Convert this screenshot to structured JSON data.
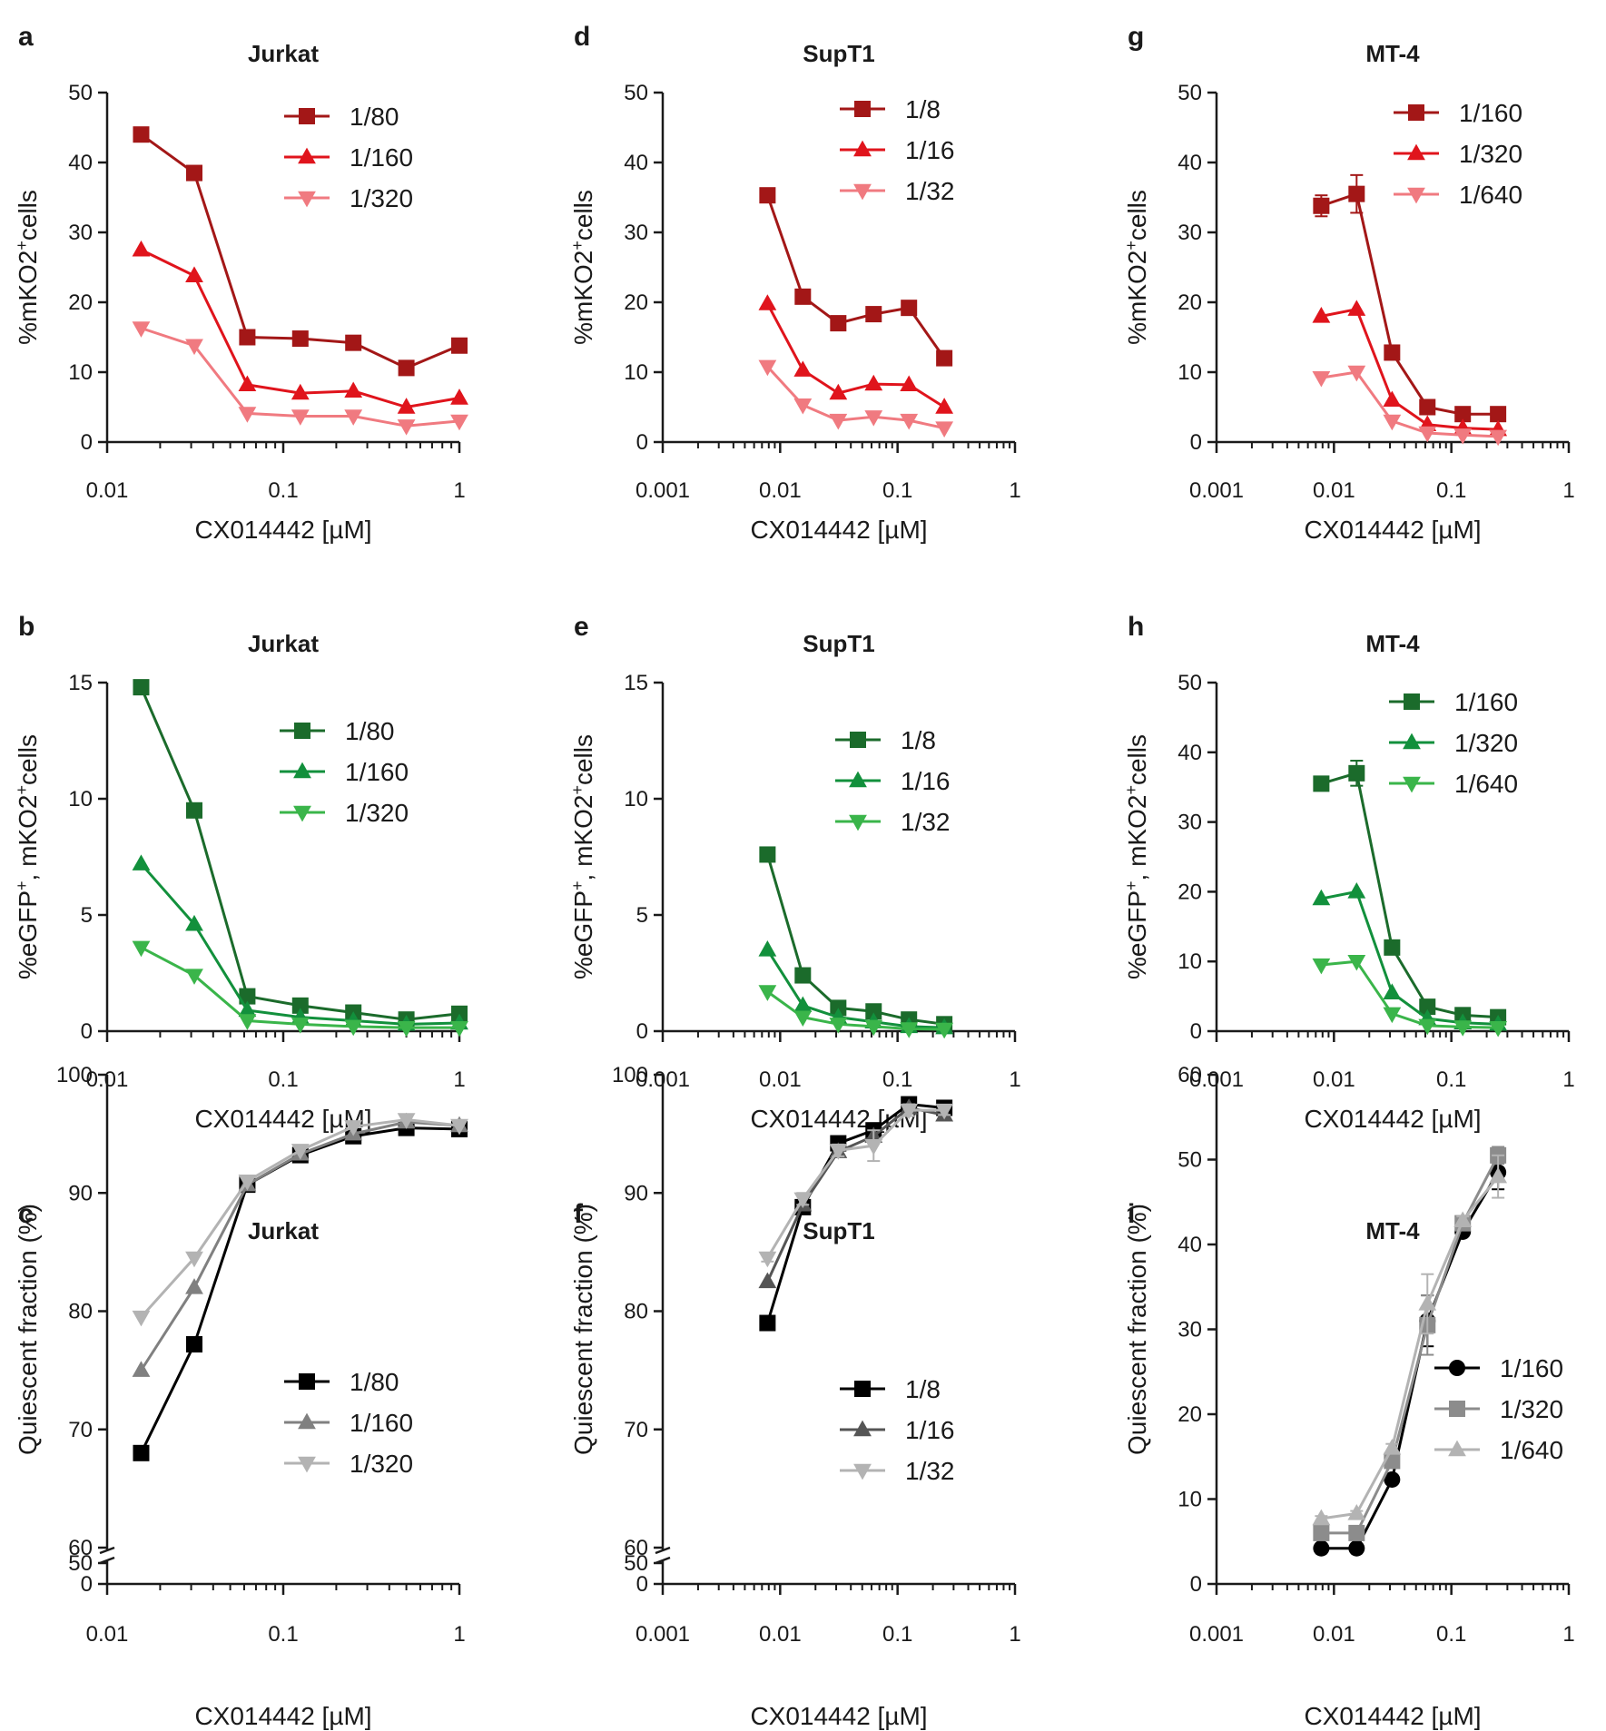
{
  "chart_data": [
    {
      "panel": "a",
      "title": "Jurkat",
      "type": "line",
      "xlabel": "CX014442 [µM]",
      "xscale": "log",
      "xlim": [
        0.01,
        1
      ],
      "xticks": [
        "0.01",
        "0.1",
        "1"
      ],
      "ylabel_parts": [
        "%mKO2",
        "+",
        "cells"
      ],
      "ylim": [
        0,
        50
      ],
      "yticks": [
        "0",
        "10",
        "20",
        "30",
        "40",
        "50"
      ],
      "x": [
        0.0156,
        0.03125,
        0.0625,
        0.125,
        0.25,
        0.5,
        1
      ],
      "series": [
        {
          "name": "1/80",
          "marker": "square",
          "color": "#a31717",
          "values": [
            44,
            38.5,
            15,
            14.8,
            14.2,
            10.6,
            13.8
          ]
        },
        {
          "name": "1/160",
          "marker": "triangle",
          "color": "#e0141c",
          "values": [
            27.5,
            23.8,
            8.2,
            7,
            7.3,
            5,
            6.3
          ]
        },
        {
          "name": "1/320",
          "marker": "triangle-down",
          "color": "#f07a80",
          "values": [
            16.3,
            13.8,
            4.1,
            3.7,
            3.7,
            2.3,
            3
          ]
        }
      ]
    },
    {
      "panel": "d",
      "title": "SupT1",
      "type": "line",
      "xlabel": "CX014442 [µM]",
      "xscale": "log",
      "xlim": [
        0.001,
        1
      ],
      "xticks": [
        "0.001",
        "0.01",
        "0.1",
        "1"
      ],
      "ylabel_parts": [
        "%mKO2",
        "+",
        "cells"
      ],
      "ylim": [
        0,
        50
      ],
      "yticks": [
        "0",
        "10",
        "20",
        "30",
        "40",
        "50"
      ],
      "x": [
        0.0078,
        0.0156,
        0.03125,
        0.0625,
        0.125,
        0.25
      ],
      "series": [
        {
          "name": "1/8",
          "marker": "square",
          "color": "#a31717",
          "values": [
            35.3,
            20.8,
            17,
            18.3,
            19.2,
            12
          ]
        },
        {
          "name": "1/16",
          "marker": "triangle",
          "color": "#e0141c",
          "values": [
            19.8,
            10.3,
            7,
            8.3,
            8.2,
            5
          ]
        },
        {
          "name": "1/32",
          "marker": "triangle-down",
          "color": "#f07a80",
          "values": [
            10.8,
            5.3,
            3.1,
            3.6,
            3.1,
            2
          ]
        }
      ]
    },
    {
      "panel": "g",
      "title": "MT-4",
      "type": "line",
      "xlabel": "CX014442 [µM]",
      "xscale": "log",
      "xlim": [
        0.001,
        1
      ],
      "xticks": [
        "0.001",
        "0.01",
        "0.1",
        "1"
      ],
      "ylabel_parts": [
        "%mKO2",
        "+",
        "cells"
      ],
      "ylim": [
        0,
        50
      ],
      "yticks": [
        "0",
        "10",
        "20",
        "30",
        "40",
        "50"
      ],
      "x": [
        0.0078,
        0.0156,
        0.03125,
        0.0625,
        0.125,
        0.25
      ],
      "series": [
        {
          "name": "1/160",
          "marker": "square",
          "color": "#a31717",
          "values": [
            33.8,
            35.5,
            12.8,
            5,
            4,
            4
          ],
          "errors": [
            1.5,
            2.7,
            1,
            0.5,
            0.3,
            0.3
          ]
        },
        {
          "name": "1/320",
          "marker": "triangle",
          "color": "#e0141c",
          "values": [
            18,
            19,
            6,
            2.5,
            2,
            1.8
          ]
        },
        {
          "name": "1/640",
          "marker": "triangle-down",
          "color": "#f07a80",
          "values": [
            9.2,
            10,
            3,
            1.3,
            1,
            0.8
          ]
        }
      ]
    },
    {
      "panel": "b",
      "title": "Jurkat",
      "type": "line",
      "xlabel": "CX014442 [µM]",
      "xscale": "log",
      "xlim": [
        0.01,
        1
      ],
      "xticks": [
        "0.01",
        "0.1",
        "1"
      ],
      "ylabel_parts": [
        "%eGFP",
        "+",
        ", mKO2",
        "+",
        "cells"
      ],
      "ylim": [
        0,
        15
      ],
      "yticks": [
        "0",
        "5",
        "10",
        "15"
      ],
      "x": [
        0.0156,
        0.03125,
        0.0625,
        0.125,
        0.25,
        0.5,
        1
      ],
      "series": [
        {
          "name": "1/80",
          "marker": "square",
          "color": "#1b6b2b",
          "values": [
            14.8,
            9.5,
            1.5,
            1.1,
            0.8,
            0.5,
            0.75
          ]
        },
        {
          "name": "1/160",
          "marker": "triangle",
          "color": "#12903c",
          "values": [
            7.2,
            4.6,
            0.9,
            0.6,
            0.45,
            0.3,
            0.35
          ]
        },
        {
          "name": "1/320",
          "marker": "triangle-down",
          "color": "#3ab54a",
          "values": [
            3.6,
            2.4,
            0.45,
            0.3,
            0.2,
            0.15,
            0.15
          ]
        }
      ]
    },
    {
      "panel": "e",
      "title": "SupT1",
      "type": "line",
      "xlabel": "CX014442 [µM]",
      "xscale": "log",
      "xlim": [
        0.001,
        1
      ],
      "xticks": [
        "0.001",
        "0.01",
        "0.1",
        "1"
      ],
      "ylabel_parts": [
        "%eGFP",
        "+",
        ", mKO2",
        "+",
        "cells"
      ],
      "ylim": [
        0,
        15
      ],
      "yticks": [
        "0",
        "5",
        "10",
        "15"
      ],
      "x": [
        0.0078,
        0.0156,
        0.03125,
        0.0625,
        0.125,
        0.25
      ],
      "series": [
        {
          "name": "1/8",
          "marker": "square",
          "color": "#1b6b2b",
          "values": [
            7.6,
            2.4,
            1,
            0.85,
            0.5,
            0.3
          ]
        },
        {
          "name": "1/16",
          "marker": "triangle",
          "color": "#12903c",
          "values": [
            3.5,
            1.1,
            0.6,
            0.4,
            0.2,
            0.15
          ]
        },
        {
          "name": "1/32",
          "marker": "triangle-down",
          "color": "#3ab54a",
          "values": [
            1.7,
            0.6,
            0.3,
            0.2,
            0.1,
            0.08
          ]
        }
      ]
    },
    {
      "panel": "h",
      "title": "MT-4",
      "type": "line",
      "xlabel": "CX014442 [µM]",
      "xscale": "log",
      "xlim": [
        0.001,
        1
      ],
      "xticks": [
        "0.001",
        "0.01",
        "0.1",
        "1"
      ],
      "ylabel_parts": [
        "%eGFP",
        "+",
        ", mKO2",
        "+",
        "cells"
      ],
      "ylim": [
        0,
        50
      ],
      "yticks": [
        "0",
        "10",
        "20",
        "30",
        "40",
        "50"
      ],
      "x": [
        0.0078,
        0.0156,
        0.03125,
        0.0625,
        0.125,
        0.25
      ],
      "series": [
        {
          "name": "1/160",
          "marker": "square",
          "color": "#1b6b2b",
          "values": [
            35.5,
            37,
            12,
            3.5,
            2.3,
            2
          ],
          "errors": [
            0.5,
            1.8,
            0.5,
            0.3,
            0.2,
            0.2
          ]
        },
        {
          "name": "1/320",
          "marker": "triangle",
          "color": "#12903c",
          "values": [
            19,
            20,
            5.5,
            1.8,
            1.2,
            1
          ]
        },
        {
          "name": "1/640",
          "marker": "triangle-down",
          "color": "#3ab54a",
          "values": [
            9.5,
            10,
            2.5,
            0.8,
            0.6,
            0.5
          ]
        }
      ]
    },
    {
      "panel": "c",
      "title": "Jurkat",
      "type": "line",
      "xlabel": "CX014442 [µM]",
      "xscale": "log",
      "xlim": [
        0.01,
        1
      ],
      "xticks": [
        "0.01",
        "0.1",
        "1"
      ],
      "ylabel_parts": [
        "Quiescent fraction (%)"
      ],
      "ylim": [
        60,
        100
      ],
      "yticks": [
        "60",
        "70",
        "80",
        "90",
        "100"
      ],
      "axis_break": {
        "lower_ticks": [
          "0",
          "50"
        ]
      },
      "x": [
        0.0156,
        0.03125,
        0.0625,
        0.125,
        0.25,
        0.5,
        1
      ],
      "series": [
        {
          "name": "1/80",
          "marker": "square",
          "color": "#000000",
          "values": [
            68,
            77.2,
            90.7,
            93.2,
            94.8,
            95.5,
            95.4
          ]
        },
        {
          "name": "1/160",
          "marker": "triangle",
          "color": "#808080",
          "values": [
            75,
            82,
            90.7,
            93.3,
            95,
            96,
            95.7
          ]
        },
        {
          "name": "1/320",
          "marker": "triangle-down",
          "color": "#b3b3b3",
          "values": [
            79.5,
            84.5,
            91,
            93.6,
            95.6,
            96.2,
            95.7
          ]
        }
      ]
    },
    {
      "panel": "f",
      "title": "SupT1",
      "type": "line",
      "xlabel": "CX014442 [µM]",
      "xscale": "log",
      "xlim": [
        0.001,
        1
      ],
      "xticks": [
        "0.001",
        "0.01",
        "0.1",
        "1"
      ],
      "ylabel_parts": [
        "Quiescent fraction (%)"
      ],
      "ylim": [
        60,
        100
      ],
      "yticks": [
        "60",
        "70",
        "80",
        "90",
        "100"
      ],
      "axis_break": {
        "lower_ticks": [
          "0",
          "50"
        ]
      },
      "x": [
        0.0078,
        0.0156,
        0.03125,
        0.0625,
        0.125,
        0.25
      ],
      "series": [
        {
          "name": "1/8",
          "marker": "square",
          "color": "#000000",
          "values": [
            79,
            88.8,
            94.2,
            95.3,
            97.5,
            97.2
          ]
        },
        {
          "name": "1/16",
          "marker": "triangle",
          "color": "#555555",
          "values": [
            82.5,
            89,
            93.5,
            94.8,
            97.2,
            96.6
          ]
        },
        {
          "name": "1/32",
          "marker": "triangle-down",
          "color": "#b3b3b3",
          "values": [
            84.5,
            89.5,
            93.6,
            94,
            97,
            97
          ],
          "errors": [
            0.3,
            0.5,
            0.5,
            1.3,
            0.5,
            0.4
          ]
        }
      ]
    },
    {
      "panel": "i",
      "title": "MT-4",
      "type": "line",
      "xlabel": "CX014442 [µM]",
      "xscale": "log",
      "xlim": [
        0.001,
        1
      ],
      "xticks": [
        "0.001",
        "0.01",
        "0.1",
        "1"
      ],
      "ylabel_parts": [
        "Quiescent fraction (%)"
      ],
      "ylim": [
        0,
        60
      ],
      "yticks": [
        "0",
        "10",
        "20",
        "30",
        "40",
        "50",
        "60"
      ],
      "x": [
        0.0078,
        0.0156,
        0.03125,
        0.0625,
        0.125,
        0.25
      ],
      "series": [
        {
          "name": "1/160",
          "marker": "circle",
          "color": "#000000",
          "values": [
            4.2,
            4.2,
            12.3,
            31,
            41.5,
            48.5
          ],
          "errors": [
            0.3,
            0.3,
            0.5,
            3,
            0.5,
            2
          ]
        },
        {
          "name": "1/320",
          "marker": "square",
          "color": "#8c8c8c",
          "values": [
            6,
            6,
            14.5,
            30.5,
            42.5,
            50.5
          ],
          "errors": [
            0.3,
            0.3,
            0.5,
            3.5,
            0.5,
            1
          ]
        },
        {
          "name": "1/640",
          "marker": "triangle",
          "color": "#b3b3b3",
          "values": [
            7.7,
            8.3,
            16,
            33,
            42.8,
            48
          ],
          "errors": [
            0.3,
            0.3,
            0.5,
            3.5,
            0.5,
            2.5
          ]
        }
      ]
    }
  ]
}
